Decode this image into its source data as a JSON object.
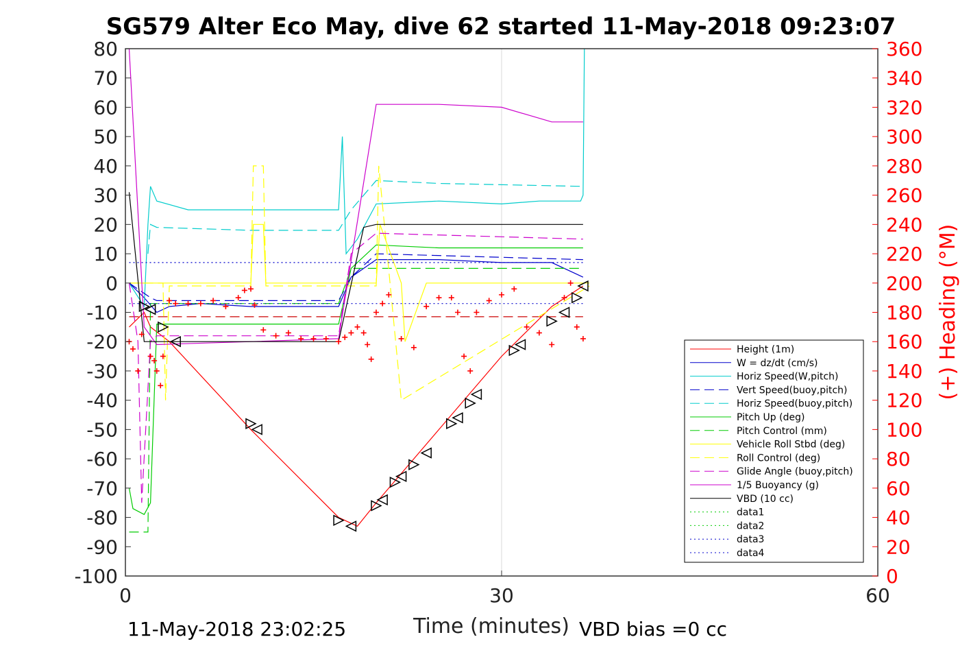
{
  "chart_data": {
    "type": "line",
    "title": "SG579 Alter Eco May, dive 62 started 11-May-2018 09:23:07",
    "xlabel": "Time (minutes)",
    "ylabel_right": "(+) Heading (°M)",
    "xlim": [
      0,
      60
    ],
    "ylim_left": [
      -100,
      80
    ],
    "ylim_right": [
      0,
      360
    ],
    "x_ticks": [
      "0",
      "30",
      "60"
    ],
    "y_ticks_left": [
      "80",
      "70",
      "60",
      "50",
      "40",
      "30",
      "20",
      "10",
      "0",
      "-10",
      "-20",
      "-30",
      "-40",
      "-50",
      "-60",
      "-70",
      "-80",
      "-90",
      "-100"
    ],
    "y_ticks_right": [
      "360",
      "340",
      "320",
      "300",
      "280",
      "260",
      "240",
      "220",
      "200",
      "180",
      "160",
      "140",
      "120",
      "100",
      "80",
      "60",
      "40",
      "20",
      "0"
    ],
    "grid": "x only",
    "legend_position": "lower-right",
    "footer_left": "11-May-2018 23:02:25",
    "footer_right": "VBD bias =0 cc",
    "series": [
      {
        "name": "Height (1m)",
        "color": "#ff0000",
        "style": "solid",
        "x": [
          0.3,
          1.5,
          2.0,
          3.5,
          10,
          17,
          18.5,
          20,
          25,
          30,
          34,
          36.5
        ],
        "y": [
          -15,
          -10,
          -15,
          -20,
          -50,
          -80,
          -83,
          -75,
          -50,
          -25,
          -8,
          -1
        ]
      },
      {
        "name": "W = dz/dt (cm/s)",
        "color": "#0000cc",
        "style": "solid",
        "x": [
          0.3,
          1.5,
          2.5,
          3.5,
          6,
          10,
          14,
          17,
          18,
          20,
          25,
          30,
          34,
          36.5
        ],
        "y": [
          0,
          -5,
          -10,
          -8,
          -7,
          -8,
          -8,
          -8,
          2,
          8,
          8,
          7,
          7,
          2
        ]
      },
      {
        "name": "Horiz Speed(W,pitch)",
        "color": "#00cccc",
        "style": "solid",
        "x": [
          0.3,
          1.5,
          1.8,
          2.0,
          2.5,
          5,
          10,
          14,
          17,
          17.3,
          17.6,
          18.5,
          20,
          25,
          30,
          33,
          36.3,
          36.5,
          36.6
        ],
        "y": [
          0,
          -8,
          20,
          33,
          28,
          25,
          25,
          25,
          25,
          50,
          10,
          15,
          27,
          28,
          27,
          28,
          28,
          30,
          80
        ]
      },
      {
        "name": "Vert Speed(buoy,pitch)",
        "color": "#0000cc",
        "style": "dashed",
        "x": [
          0.3,
          2.0,
          2.5,
          10,
          17,
          18,
          20,
          36.5
        ],
        "y": [
          0,
          -5,
          -6,
          -6,
          -6,
          2,
          10,
          8
        ]
      },
      {
        "name": "Horiz Speed(buoy,pitch)",
        "color": "#00cccc",
        "style": "dashed",
        "x": [
          1.8,
          2.0,
          2.5,
          10,
          17,
          18,
          20,
          25,
          36.5
        ],
        "y": [
          10,
          20,
          19,
          18,
          18,
          25,
          35,
          34,
          33
        ]
      },
      {
        "name": "Pitch Up (deg)",
        "color": "#00cc00",
        "style": "solid",
        "x": [
          0.3,
          0.6,
          1.5,
          2.0,
          2.5,
          10,
          17,
          18,
          20,
          25,
          36.5
        ],
        "y": [
          -70,
          -77,
          -79,
          -75,
          -14,
          -14,
          -14,
          5,
          13,
          12,
          12
        ]
      },
      {
        "name": "Pitch Control (mm)",
        "color": "#00cc00",
        "style": "dashed",
        "x": [
          0.3,
          1.5,
          1.8,
          2.0,
          17,
          18,
          36.5
        ],
        "y": [
          -85,
          -85,
          -85,
          -7,
          -7,
          5,
          5
        ]
      },
      {
        "name": "Vehicle Roll Stbd (deg)",
        "color": "#ffff00",
        "style": "solid",
        "x": [
          0.3,
          3,
          10,
          10.2,
          11,
          11.2,
          20,
          20.3,
          22,
          22.3,
          24,
          37
        ],
        "y": [
          0,
          0,
          0,
          20,
          20,
          0,
          0,
          20,
          0,
          -20,
          0,
          0
        ]
      },
      {
        "name": "Roll Control (deg)",
        "color": "#ffff00",
        "style": "dashed",
        "x": [
          0.3,
          3,
          3.2,
          3.5,
          10,
          10.2,
          11,
          11.2,
          20,
          20.2,
          22,
          37
        ],
        "y": [
          0,
          0,
          -40,
          -1,
          -1,
          40,
          40,
          -1,
          -1,
          40,
          -40,
          -1
        ]
      },
      {
        "name": "Glide Angle (buoy,pitch)",
        "color": "#cc00cc",
        "style": "dashed",
        "x": [
          0.3,
          1.0,
          1.3,
          2.0,
          2.5,
          10,
          17,
          18,
          20,
          36.5
        ],
        "y": [
          0,
          -20,
          -75,
          -20,
          -18,
          -18,
          -18,
          10,
          17,
          15
        ]
      },
      {
        "name": "1/5 Buoyancy (g)",
        "color": "#cc00cc",
        "style": "solid",
        "x": [
          0.3,
          1.5,
          2.5,
          10,
          17,
          20,
          25,
          30,
          34,
          36.5
        ],
        "y": [
          80,
          -15,
          -21,
          -20,
          -19,
          61,
          61,
          60,
          55,
          55
        ]
      },
      {
        "name": "VBD (10 cc)",
        "color": "#000000",
        "style": "solid",
        "x": [
          0.3,
          1.5,
          2.5,
          17,
          19,
          20,
          36.5
        ],
        "y": [
          31,
          -20,
          -20,
          -20,
          19,
          20,
          20
        ]
      },
      {
        "name": "data1",
        "color": "#00cc00",
        "style": "dotted",
        "x": [],
        "y": []
      },
      {
        "name": "data2",
        "color": "#00cc00",
        "style": "dotted",
        "x": [],
        "y": []
      },
      {
        "name": "data3",
        "color": "#0000cc",
        "style": "dotted",
        "x": [
          0.3,
          36.5
        ],
        "y": [
          7,
          7
        ]
      },
      {
        "name": "data4",
        "color": "#0000cc",
        "style": "dotted",
        "x": [
          0.3,
          36.5
        ],
        "y": [
          -7,
          -7
        ]
      }
    ],
    "unlisted_lines": [
      {
        "color": "#cc0000",
        "style": "dashed",
        "x": [
          0.3,
          36.5
        ],
        "y": [
          -11.5,
          -11.5
        ]
      }
    ],
    "heading_markers": {
      "axis": "right",
      "color": "#ff0000",
      "marker": "+",
      "x": [
        0.3,
        0.6,
        1.0,
        1.3,
        2.0,
        2.3,
        2.5,
        2.8,
        3.0,
        3.5,
        4.0,
        5,
        6,
        7,
        8,
        9,
        9.5,
        10,
        10.3,
        11,
        12,
        13,
        14,
        15,
        16,
        17,
        17.5,
        18,
        18.5,
        19,
        19.3,
        19.6,
        20,
        20.5,
        21,
        22,
        23,
        24,
        25,
        26,
        26.5,
        27,
        27.5,
        28,
        29,
        30,
        31,
        32,
        33,
        34,
        35,
        35.5,
        36,
        36.5
      ],
      "y": [
        160,
        155,
        140,
        165,
        150,
        147,
        140,
        130,
        150,
        188,
        186,
        186,
        186,
        188,
        184,
        190,
        195,
        196,
        185,
        168,
        164,
        166,
        162,
        162,
        162,
        160,
        163,
        166,
        170,
        166,
        158,
        148,
        180,
        186,
        192,
        162,
        156,
        184,
        190,
        190,
        180,
        150,
        140,
        180,
        188,
        192,
        196,
        170,
        166,
        158,
        190,
        200,
        170,
        162
      ]
    },
    "track_markers": {
      "axis": "left",
      "color": "#000000",
      "marker": "triangle",
      "x": [
        1.5,
        2.0,
        3.0,
        4.0,
        10.0,
        10.5,
        17.0,
        18.0,
        20.0,
        20.5,
        21.5,
        22.0,
        23.0,
        24.0,
        26.0,
        26.5,
        27.5,
        28.0,
        31.0,
        31.5,
        34.0,
        35.0,
        36.0,
        36.5
      ],
      "y": [
        -8,
        -9,
        -15,
        -20,
        -48,
        -50,
        -81,
        -83,
        -76,
        -74,
        -68,
        -66,
        -62,
        -58,
        -48,
        -46,
        -41,
        -38,
        -23,
        -21,
        -13,
        -10,
        -5,
        -1
      ]
    }
  }
}
